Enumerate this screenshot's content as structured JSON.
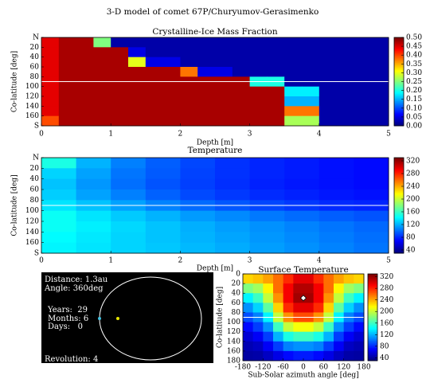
{
  "title": "3-D model of comet 67P/Churyumov-Gerasimenko",
  "chart_data": [
    {
      "type": "heatmap",
      "title": "Crystalline-Ice Mass Fraction",
      "xlabel": "Depth [m]",
      "ylabel": "Co-latitude [deg]",
      "xlim": [
        0,
        5
      ],
      "xticks": [
        0,
        1,
        2,
        3,
        4,
        5
      ],
      "ylim": [
        0,
        180
      ],
      "invert_y": true,
      "yticks": [
        {
          "value": 0,
          "label": "N"
        },
        20,
        40,
        60,
        80,
        100,
        120,
        140,
        160,
        {
          "value": 180,
          "label": "S"
        }
      ],
      "colormap": "jet",
      "clim": [
        0,
        0.5
      ],
      "cticks": [
        {
          "value": 0,
          "label": "0.00"
        },
        0.05,
        {
          "value": 0.1,
          "label": "0.10"
        },
        0.15,
        {
          "value": 0.2,
          "label": "0.20"
        },
        0.25,
        {
          "value": 0.3,
          "label": "0.30"
        },
        0.35,
        {
          "value": 0.4,
          "label": "0.40"
        },
        0.45,
        {
          "value": 0.5,
          "label": "0.50"
        }
      ],
      "hline": 90,
      "values": [
        [
          0.45,
          0.48,
          0.48,
          0.25,
          0.02,
          0.02,
          0.02,
          0.02,
          0.02,
          0.02,
          0.02,
          0.02,
          0.02,
          0.02,
          0.02,
          0.02,
          0.02,
          0.02,
          0.02,
          0.02
        ],
        [
          0.45,
          0.48,
          0.48,
          0.48,
          0.48,
          0.05,
          0.02,
          0.02,
          0.02,
          0.02,
          0.02,
          0.02,
          0.02,
          0.02,
          0.02,
          0.02,
          0.02,
          0.02,
          0.02,
          0.02
        ],
        [
          0.45,
          0.48,
          0.48,
          0.48,
          0.48,
          0.3,
          0.05,
          0.05,
          0.02,
          0.02,
          0.02,
          0.02,
          0.02,
          0.02,
          0.02,
          0.02,
          0.02,
          0.02,
          0.02,
          0.02
        ],
        [
          0.45,
          0.48,
          0.48,
          0.48,
          0.48,
          0.48,
          0.48,
          0.48,
          0.38,
          0.05,
          0.05,
          0.02,
          0.02,
          0.02,
          0.02,
          0.02,
          0.02,
          0.02,
          0.02,
          0.02
        ],
        [
          0.45,
          0.48,
          0.48,
          0.48,
          0.48,
          0.48,
          0.48,
          0.48,
          0.48,
          0.48,
          0.48,
          0.48,
          0.2,
          0.2,
          0.02,
          0.02,
          0.02,
          0.02,
          0.02,
          0.02
        ],
        [
          0.45,
          0.48,
          0.48,
          0.48,
          0.48,
          0.48,
          0.48,
          0.48,
          0.48,
          0.48,
          0.48,
          0.48,
          0.48,
          0.48,
          0.18,
          0.18,
          0.02,
          0.02,
          0.02,
          0.02
        ],
        [
          0.45,
          0.48,
          0.48,
          0.48,
          0.48,
          0.48,
          0.48,
          0.48,
          0.48,
          0.48,
          0.48,
          0.48,
          0.48,
          0.48,
          0.15,
          0.15,
          0.02,
          0.02,
          0.02,
          0.02
        ],
        [
          0.45,
          0.48,
          0.48,
          0.48,
          0.48,
          0.48,
          0.48,
          0.48,
          0.48,
          0.48,
          0.48,
          0.48,
          0.48,
          0.48,
          0.38,
          0.38,
          0.02,
          0.02,
          0.02,
          0.02
        ],
        [
          0.4,
          0.48,
          0.48,
          0.48,
          0.48,
          0.48,
          0.48,
          0.48,
          0.48,
          0.48,
          0.48,
          0.48,
          0.48,
          0.48,
          0.27,
          0.27,
          0.02,
          0.02,
          0.02,
          0.02
        ]
      ]
    },
    {
      "type": "heatmap",
      "title": "Temperature",
      "xlabel": "Depth [m]",
      "ylabel": "Co-latitude [deg]",
      "xlim": [
        0,
        5
      ],
      "xticks": [
        0,
        1,
        2,
        3,
        4,
        5
      ],
      "ylim": [
        0,
        180
      ],
      "invert_y": true,
      "yticks": [
        {
          "value": 0,
          "label": "N"
        },
        20,
        40,
        60,
        80,
        100,
        120,
        140,
        160,
        {
          "value": 180,
          "label": "S"
        }
      ],
      "colormap": "jet",
      "clim": [
        30,
        330
      ],
      "cticks": [
        40,
        80,
        120,
        160,
        200,
        240,
        280,
        320
      ],
      "hline": 90,
      "values": [
        [
          150,
          120,
          105,
          95,
          88,
          82,
          78,
          75,
          72,
          70
        ],
        [
          130,
          115,
          102,
          94,
          87,
          82,
          78,
          75,
          72,
          70
        ],
        [
          125,
          112,
          100,
          92,
          86,
          81,
          77,
          74,
          72,
          70
        ],
        [
          128,
          115,
          105,
          96,
          89,
          84,
          80,
          77,
          74,
          72
        ],
        [
          135,
          125,
          115,
          106,
          99,
          93,
          88,
          84,
          80,
          78
        ],
        [
          145,
          135,
          127,
          120,
          113,
          108,
          103,
          99,
          95,
          92
        ],
        [
          145,
          138,
          131,
          125,
          119,
          114,
          110,
          106,
          102,
          98
        ],
        [
          142,
          136,
          130,
          125,
          120,
          116,
          112,
          108,
          104,
          100
        ],
        [
          140,
          135,
          130,
          126,
          122,
          118,
          114,
          110,
          106,
          102
        ]
      ]
    },
    {
      "type": "orbit",
      "lines": [
        "Distance: 1.3au",
        "Angle: 360deg",
        "Years:  29",
        "Months: 6",
        "Days:   0",
        "Revolution: 4"
      ]
    },
    {
      "type": "heatmap",
      "title": "Surface Temperature",
      "xlabel": "Sub-Solar azimuth angle [deg]",
      "ylabel": "Co-latitude [deg]",
      "xlim": [
        -180,
        180
      ],
      "xticks": [
        -180,
        -120,
        -60,
        0,
        60,
        120,
        180
      ],
      "ylim": [
        0,
        180
      ],
      "invert_y": true,
      "yticks": [
        0,
        20,
        40,
        60,
        80,
        100,
        120,
        140,
        160,
        180
      ],
      "colormap": "jet",
      "clim": [
        30,
        330
      ],
      "cticks": [
        40,
        80,
        120,
        160,
        200,
        240,
        280,
        320
      ],
      "hline": 90,
      "marker": {
        "x": 0,
        "y": 50
      },
      "values": [
        [
          230,
          235,
          245,
          260,
          280,
          300,
          300,
          280,
          260,
          245,
          235,
          230
        ],
        [
          180,
          190,
          220,
          260,
          295,
          315,
          315,
          295,
          260,
          220,
          190,
          180
        ],
        [
          140,
          160,
          200,
          250,
          295,
          320,
          320,
          295,
          250,
          200,
          160,
          140
        ],
        [
          110,
          130,
          170,
          230,
          280,
          300,
          300,
          280,
          230,
          170,
          130,
          110
        ],
        [
          90,
          105,
          140,
          200,
          250,
          270,
          270,
          250,
          200,
          140,
          105,
          90
        ],
        [
          70,
          85,
          110,
          160,
          200,
          215,
          215,
          200,
          160,
          110,
          85,
          70
        ],
        [
          55,
          65,
          85,
          120,
          150,
          160,
          160,
          150,
          120,
          85,
          65,
          55
        ],
        [
          45,
          50,
          65,
          85,
          105,
          110,
          110,
          105,
          85,
          65,
          50,
          45
        ],
        [
          40,
          42,
          50,
          60,
          70,
          75,
          75,
          70,
          60,
          50,
          42,
          40
        ]
      ]
    }
  ]
}
